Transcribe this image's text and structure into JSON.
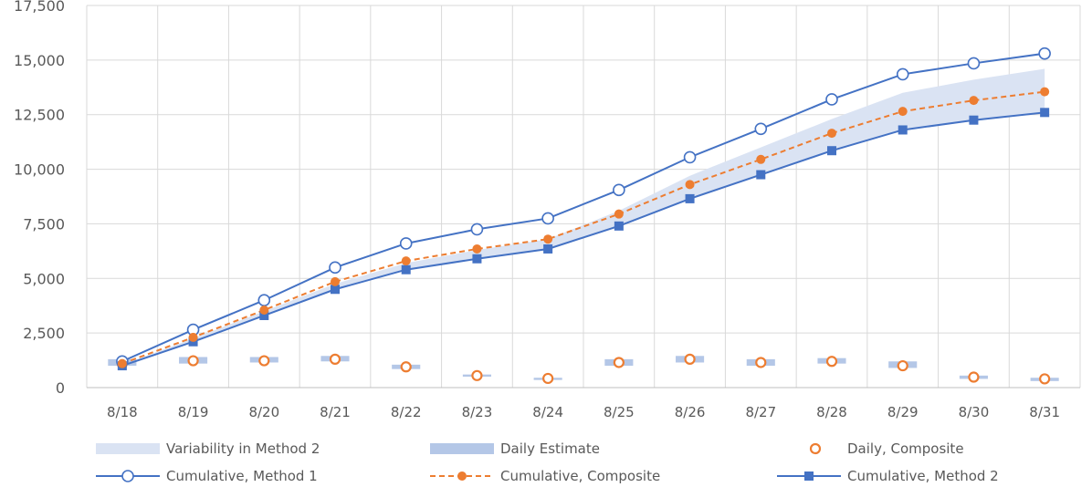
{
  "chart_data": {
    "type": "line",
    "categories": [
      "8/18",
      "8/19",
      "8/20",
      "8/21",
      "8/22",
      "8/23",
      "8/24",
      "8/25",
      "8/26",
      "8/27",
      "8/28",
      "8/29",
      "8/30",
      "8/31"
    ],
    "y_ticks": [
      "0",
      "2,500",
      "5,000",
      "7,500",
      "10,000",
      "12,500",
      "15,000",
      "17,500"
    ],
    "ylim": [
      0,
      17500
    ],
    "grid": true,
    "legend_position": "bottom",
    "series": [
      {
        "name": "Variability in Method 2",
        "kind": "band",
        "color": "#dae3f3",
        "lower": [
          1000,
          2100,
          3300,
          4500,
          5400,
          5900,
          6300,
          7400,
          8600,
          9700,
          10800,
          11800,
          12200,
          12600
        ],
        "upper": [
          1050,
          2250,
          3500,
          4750,
          5700,
          6300,
          6800,
          8100,
          9700,
          11000,
          12300,
          13500,
          14100,
          14600
        ]
      },
      {
        "name": "Daily Estimate",
        "kind": "floating-bar",
        "color": "#b4c7e7",
        "low": [
          1000,
          1100,
          1150,
          1200,
          850,
          500,
          350,
          1000,
          1150,
          1000,
          1100,
          900,
          400,
          300
        ],
        "high": [
          1300,
          1400,
          1400,
          1450,
          1050,
          600,
          450,
          1300,
          1450,
          1300,
          1350,
          1200,
          550,
          450
        ]
      },
      {
        "name": "Daily, Composite",
        "kind": "hollow-marker",
        "color": "#ed7d31",
        "values": [
          1100,
          1230,
          1230,
          1300,
          950,
          550,
          420,
          1150,
          1300,
          1150,
          1200,
          1000,
          480,
          400
        ]
      },
      {
        "name": "Cumulative, Method 1",
        "kind": "line-hollow-circle",
        "color": "#4472c4",
        "values": [
          1200,
          2650,
          4000,
          5500,
          6600,
          7250,
          7750,
          9050,
          10550,
          11850,
          13200,
          14350,
          14850,
          15300
        ]
      },
      {
        "name": "Cumulative, Composite",
        "kind": "dashed-line-dot",
        "color": "#ed7d31",
        "values": [
          1100,
          2300,
          3550,
          4850,
          5800,
          6350,
          6800,
          7950,
          9300,
          10450,
          11650,
          12650,
          13150,
          13550
        ]
      },
      {
        "name": "Cumulative, Method 2",
        "kind": "line-square",
        "color": "#4472c4",
        "values": [
          1000,
          2100,
          3300,
          4500,
          5400,
          5900,
          6350,
          7400,
          8650,
          9750,
          10850,
          11800,
          12250,
          12600
        ]
      }
    ]
  }
}
